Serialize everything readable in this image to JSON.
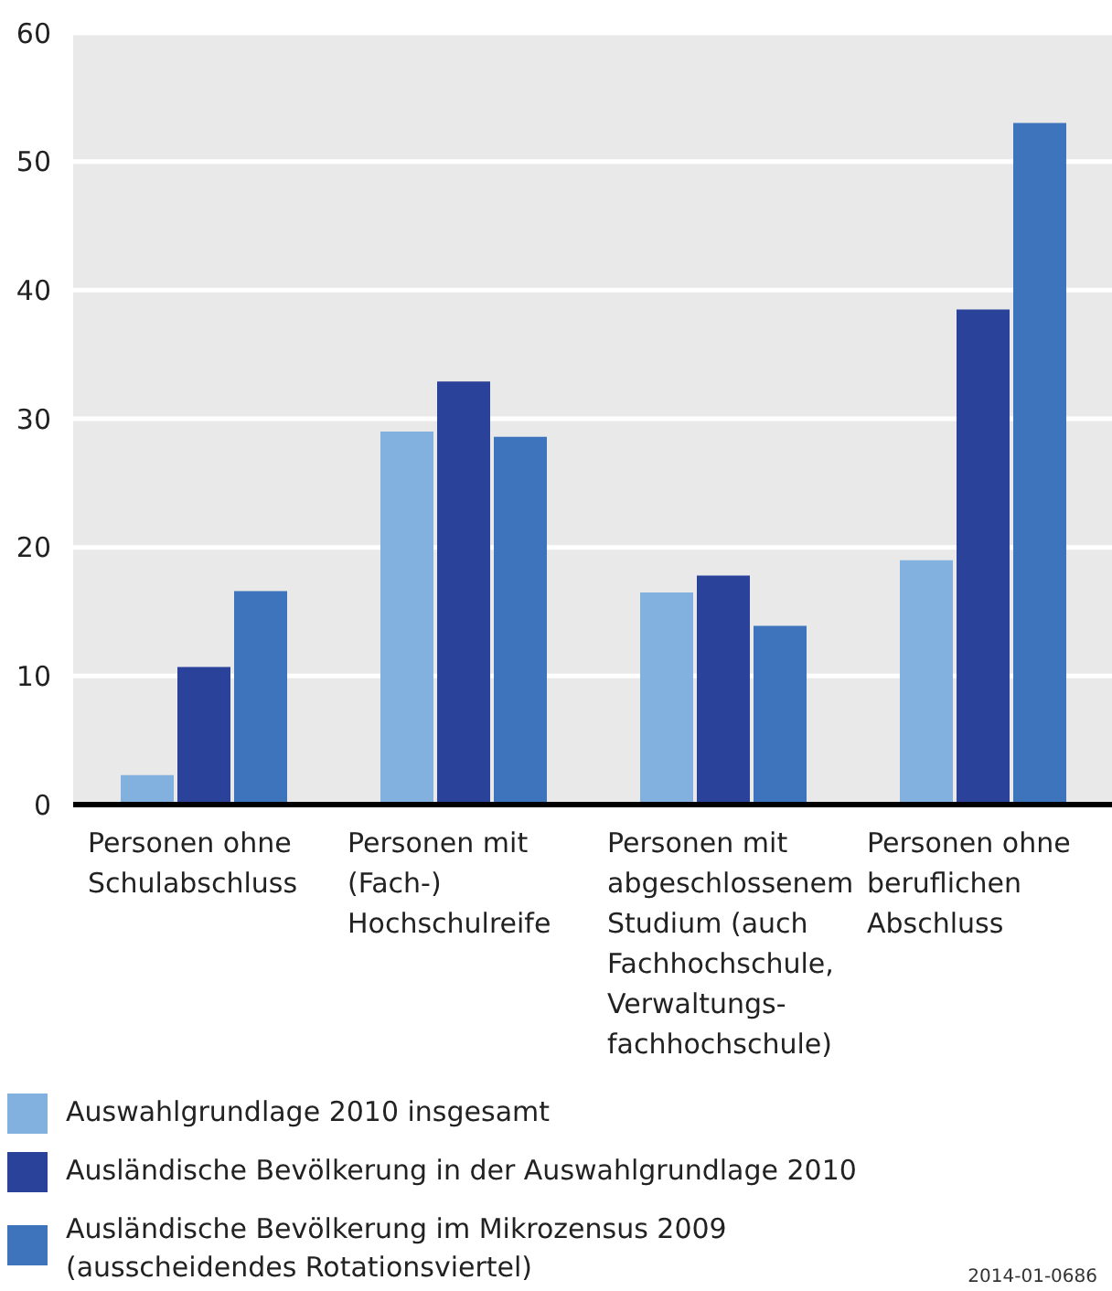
{
  "chart_data": {
    "type": "bar",
    "categories": [
      "Personen ohne\nSchulabschluss",
      "Personen mit\n(Fach-)\nHochschulreife",
      "Personen mit\nabgeschlossenem\nStudium (auch\nFachhochschule,\nVerwaltungs-\nfachhochschule)",
      "Personen ohne\nberuflichen\nAbschluss"
    ],
    "series": [
      {
        "name": "Auswahlgrundlage 2010 insgesamt",
        "color": "#82b1e0",
        "values": [
          2.3,
          29.0,
          16.5,
          19.0
        ]
      },
      {
        "name": "Ausländische Bevölkerung in der Auswahlgrundlage 2010",
        "color": "#2a4299",
        "values": [
          10.7,
          32.9,
          17.8,
          38.5
        ]
      },
      {
        "name": "Ausländische Bevölkerung im Mikrozensus 2009\n(ausscheidendes Rotationsviertel)",
        "color": "#3d74bc",
        "values": [
          16.6,
          28.6,
          13.9,
          53.0
        ]
      }
    ],
    "ylim": [
      0,
      60
    ],
    "yticks": [
      0,
      10,
      20,
      30,
      40,
      50,
      60
    ],
    "grid": "y",
    "legend": "bottom",
    "annotations": [
      "2014-01-0686"
    ]
  }
}
